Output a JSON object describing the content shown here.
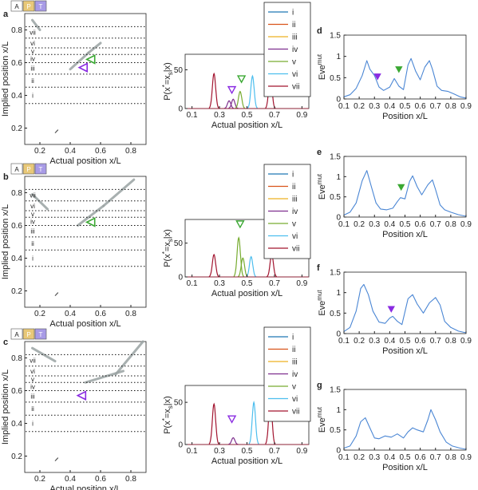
{
  "panel_letters": [
    "a",
    "b",
    "c",
    "d",
    "e",
    "f",
    "g"
  ],
  "heatmap_common": {
    "xlabel": "Actual position x/L",
    "ylabel": "Implied position x/L",
    "xticks": [
      "0.2",
      "0.4",
      "0.6",
      "0.8"
    ],
    "yticks": [
      "0.2",
      "0.4",
      "0.6",
      "0.8"
    ],
    "boundary_labels": [
      "vii",
      "vi",
      "v",
      "iv",
      "iii",
      "ii",
      "i"
    ],
    "gene_boxes": [
      {
        "label": "A",
        "color": "#ffffff"
      },
      {
        "label": "P",
        "color": "#e8c878"
      },
      {
        "label": "T",
        "color": "#a89be6"
      }
    ]
  },
  "profile_common": {
    "xlabel": "Actual position x/L",
    "ylabel_main": "P(x",
    "ylabel_sup": "*",
    "ylabel_rest": "=x",
    "ylabel_sub": "s",
    "ylabel_end": "|x)",
    "xticks": [
      "0.1",
      "0.3",
      "0.5",
      "0.7",
      "0.9"
    ],
    "yticks": [
      "0",
      "50"
    ],
    "legend": [
      "i",
      "ii",
      "iii",
      "iv",
      "v",
      "vi",
      "vii"
    ],
    "legend_colors": [
      "#1f77b4",
      "#d95319",
      "#edb120",
      "#7e2f8e",
      "#77ac30",
      "#4dbeee",
      "#a2142f"
    ]
  },
  "eve_common": {
    "xlabel": "Position x/L",
    "ylabel": "Eve",
    "ylabel_sup": "mut",
    "xticks": [
      "0.1",
      "0.2",
      "0.3",
      "0.4",
      "0.5",
      "0.6",
      "0.7",
      "0.8",
      "0.9"
    ],
    "yticks": [
      "0",
      "0.5",
      "1",
      "1.5"
    ]
  },
  "colors": {
    "eve_line": "#4a86d4",
    "green_marker": "#3aa832",
    "purple_marker": "#8a2be2"
  },
  "chart_data": [
    {
      "panel": "a",
      "type": "heatmap",
      "x_range": [
        0.1,
        0.9
      ],
      "y_range": [
        0.1,
        0.9
      ],
      "boundaries_y": [
        0.82,
        0.75,
        0.69,
        0.65,
        0.6,
        0.53,
        0.45,
        0.35
      ],
      "markers": [
        {
          "x": 0.53,
          "y": 0.62,
          "color": "green"
        },
        {
          "x": 0.48,
          "y": 0.57,
          "color": "purple"
        }
      ]
    },
    {
      "panel": "a",
      "type": "line",
      "x_range": [
        0.05,
        0.95
      ],
      "y_range": [
        0,
        70
      ],
      "peaks": [
        {
          "series": "vii",
          "x": 0.26,
          "y": 45
        },
        {
          "series": "iv",
          "x": 0.37,
          "y": 10
        },
        {
          "series": "iv",
          "x": 0.4,
          "y": 12
        },
        {
          "series": "v",
          "x": 0.45,
          "y": 22
        },
        {
          "series": "vi",
          "x": 0.54,
          "y": 42
        },
        {
          "series": "vii",
          "x": 0.67,
          "y": 45
        }
      ],
      "markers": [
        {
          "x": 0.46,
          "y": 38,
          "color": "green"
        },
        {
          "x": 0.39,
          "y": 24,
          "color": "purple"
        }
      ]
    },
    {
      "panel": "b",
      "type": "heatmap",
      "x_range": [
        0.1,
        0.9
      ],
      "y_range": [
        0.1,
        0.9
      ],
      "boundaries_y": [
        0.82,
        0.75,
        0.69,
        0.65,
        0.6,
        0.53,
        0.45,
        0.35
      ],
      "markers": [
        {
          "x": 0.53,
          "y": 0.62,
          "color": "green"
        }
      ]
    },
    {
      "panel": "b",
      "type": "line",
      "x_range": [
        0.05,
        0.95
      ],
      "y_range": [
        0,
        85
      ],
      "peaks": [
        {
          "series": "vii",
          "x": 0.26,
          "y": 33
        },
        {
          "series": "v",
          "x": 0.44,
          "y": 58
        },
        {
          "series": "v",
          "x": 0.47,
          "y": 28
        },
        {
          "series": "vi",
          "x": 0.53,
          "y": 30
        },
        {
          "series": "vii",
          "x": 0.68,
          "y": 33
        }
      ],
      "markers": [
        {
          "x": 0.45,
          "y": 78,
          "color": "green"
        }
      ]
    },
    {
      "panel": "c",
      "type": "heatmap",
      "x_range": [
        0.1,
        0.9
      ],
      "y_range": [
        0.1,
        0.9
      ],
      "boundaries_y": [
        0.82,
        0.75,
        0.69,
        0.65,
        0.6,
        0.53,
        0.45,
        0.35
      ],
      "markers": [
        {
          "x": 0.47,
          "y": 0.57,
          "color": "purple"
        }
      ]
    },
    {
      "panel": "c",
      "type": "line",
      "x_range": [
        0.05,
        0.95
      ],
      "y_range": [
        0,
        70
      ],
      "peaks": [
        {
          "series": "vii",
          "x": 0.26,
          "y": 48
        },
        {
          "series": "iv",
          "x": 0.4,
          "y": 8
        },
        {
          "series": "vi",
          "x": 0.55,
          "y": 50
        },
        {
          "series": "vii",
          "x": 0.67,
          "y": 55
        }
      ],
      "markers": [
        {
          "x": 0.39,
          "y": 30,
          "color": "purple"
        }
      ]
    },
    {
      "panel": "d",
      "type": "line",
      "x_range": [
        0.1,
        0.9
      ],
      "y_range": [
        0,
        1.5
      ],
      "x": [
        0.1,
        0.14,
        0.18,
        0.22,
        0.25,
        0.27,
        0.3,
        0.33,
        0.36,
        0.4,
        0.43,
        0.46,
        0.49,
        0.52,
        0.54,
        0.57,
        0.6,
        0.63,
        0.66,
        0.68,
        0.71,
        0.74,
        0.78,
        0.82,
        0.86,
        0.9
      ],
      "y": [
        0.05,
        0.1,
        0.25,
        0.55,
        0.9,
        0.7,
        0.55,
        0.28,
        0.2,
        0.28,
        0.48,
        0.3,
        0.22,
        0.8,
        0.95,
        0.65,
        0.45,
        0.75,
        0.9,
        0.7,
        0.3,
        0.2,
        0.18,
        0.12,
        0.05,
        0.02
      ],
      "markers": [
        {
          "x": 0.32,
          "y": 0.45,
          "color": "purple"
        },
        {
          "x": 0.46,
          "y": 0.62,
          "color": "green"
        }
      ]
    },
    {
      "panel": "e",
      "type": "line",
      "x_range": [
        0.1,
        0.9
      ],
      "y_range": [
        0,
        1.5
      ],
      "x": [
        0.1,
        0.14,
        0.18,
        0.22,
        0.25,
        0.28,
        0.31,
        0.34,
        0.38,
        0.42,
        0.45,
        0.47,
        0.5,
        0.53,
        0.55,
        0.58,
        0.61,
        0.65,
        0.68,
        0.7,
        0.73,
        0.76,
        0.8,
        0.85,
        0.9
      ],
      "y": [
        0.05,
        0.12,
        0.35,
        0.9,
        1.15,
        0.75,
        0.35,
        0.2,
        0.18,
        0.22,
        0.38,
        0.48,
        0.45,
        0.88,
        1.02,
        0.75,
        0.55,
        0.8,
        0.92,
        0.68,
        0.3,
        0.18,
        0.12,
        0.06,
        0.02
      ],
      "markers": [
        {
          "x": 0.475,
          "y": 0.66,
          "color": "green"
        }
      ]
    },
    {
      "panel": "f",
      "type": "line",
      "x_range": [
        0.1,
        0.9
      ],
      "y_range": [
        0,
        1.5
      ],
      "x": [
        0.1,
        0.14,
        0.18,
        0.21,
        0.23,
        0.26,
        0.29,
        0.33,
        0.37,
        0.4,
        0.42,
        0.45,
        0.48,
        0.52,
        0.55,
        0.58,
        0.62,
        0.66,
        0.7,
        0.73,
        0.76,
        0.8,
        0.85,
        0.9
      ],
      "y": [
        0.05,
        0.15,
        0.55,
        1.1,
        1.2,
        0.95,
        0.55,
        0.28,
        0.25,
        0.38,
        0.42,
        0.3,
        0.22,
        0.85,
        0.95,
        0.72,
        0.5,
        0.75,
        0.88,
        0.7,
        0.3,
        0.15,
        0.06,
        0.02
      ],
      "markers": [
        {
          "x": 0.41,
          "y": 0.52,
          "color": "purple"
        }
      ]
    },
    {
      "panel": "g",
      "type": "line",
      "x_range": [
        0.1,
        0.9
      ],
      "y_range": [
        0,
        1.5
      ],
      "x": [
        0.1,
        0.14,
        0.18,
        0.21,
        0.24,
        0.27,
        0.3,
        0.33,
        0.37,
        0.41,
        0.45,
        0.49,
        0.52,
        0.55,
        0.58,
        0.62,
        0.65,
        0.67,
        0.7,
        0.73,
        0.77,
        0.81,
        0.86,
        0.9
      ],
      "y": [
        0.05,
        0.1,
        0.35,
        0.7,
        0.8,
        0.55,
        0.3,
        0.28,
        0.35,
        0.32,
        0.4,
        0.3,
        0.45,
        0.55,
        0.5,
        0.45,
        0.75,
        1.0,
        0.75,
        0.45,
        0.2,
        0.1,
        0.05,
        0.02
      ],
      "markers": []
    }
  ]
}
